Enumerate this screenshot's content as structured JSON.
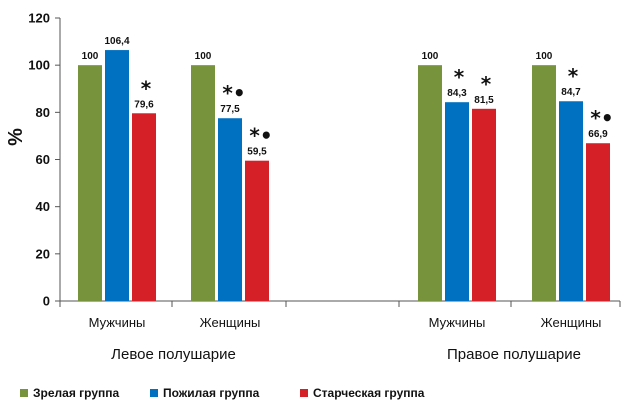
{
  "chart_data": {
    "type": "bar",
    "ylabel": "%",
    "ylim": [
      0,
      120
    ],
    "yticks": [
      "0",
      "20",
      "40",
      "60",
      "80",
      "100",
      "120"
    ],
    "grid": false,
    "legend_position": "bottom",
    "groups": [
      {
        "label": "Левое полушарие",
        "categories": [
          {
            "label": "Мужчины",
            "bars": [
              {
                "series": "Зрелая группа",
                "value": 100,
                "label": "100",
                "mark": ""
              },
              {
                "series": "Пожилая группа",
                "value": 106.4,
                "label": "106,4",
                "mark": ""
              },
              {
                "series": "Старческая группа",
                "value": 79.6,
                "label": "79,6",
                "mark": "*"
              }
            ]
          },
          {
            "label": "Женщины",
            "bars": [
              {
                "series": "Зрелая группа",
                "value": 100,
                "label": "100",
                "mark": ""
              },
              {
                "series": "Пожилая группа",
                "value": 77.5,
                "label": "77,5",
                "mark": "*•"
              },
              {
                "series": "Старческая группа",
                "value": 59.5,
                "label": "59,5",
                "mark": "*•"
              }
            ]
          }
        ]
      },
      {
        "label": "Правое полушарие",
        "categories": [
          {
            "label": "Мужчины",
            "bars": [
              {
                "series": "Зрелая группа",
                "value": 100,
                "label": "100",
                "mark": ""
              },
              {
                "series": "Пожилая группа",
                "value": 84.3,
                "label": "84,3",
                "mark": "*"
              },
              {
                "series": "Старческая группа",
                "value": 81.5,
                "label": "81,5",
                "mark": "*"
              }
            ]
          },
          {
            "label": "Женщины",
            "bars": [
              {
                "series": "Зрелая группа",
                "value": 100,
                "label": "100",
                "mark": ""
              },
              {
                "series": "Пожилая группа",
                "value": 84.7,
                "label": "84,7",
                "mark": "*"
              },
              {
                "series": "Старческая группа",
                "value": 66.9,
                "label": "66,9",
                "mark": "*•"
              }
            ]
          }
        ]
      }
    ],
    "series": [
      {
        "name": "Зрелая группа",
        "color": "#77933c"
      },
      {
        "name": "Пожилая группа",
        "color": "#0070c0"
      },
      {
        "name": "Старческая группа",
        "color": "#d62027"
      }
    ]
  }
}
